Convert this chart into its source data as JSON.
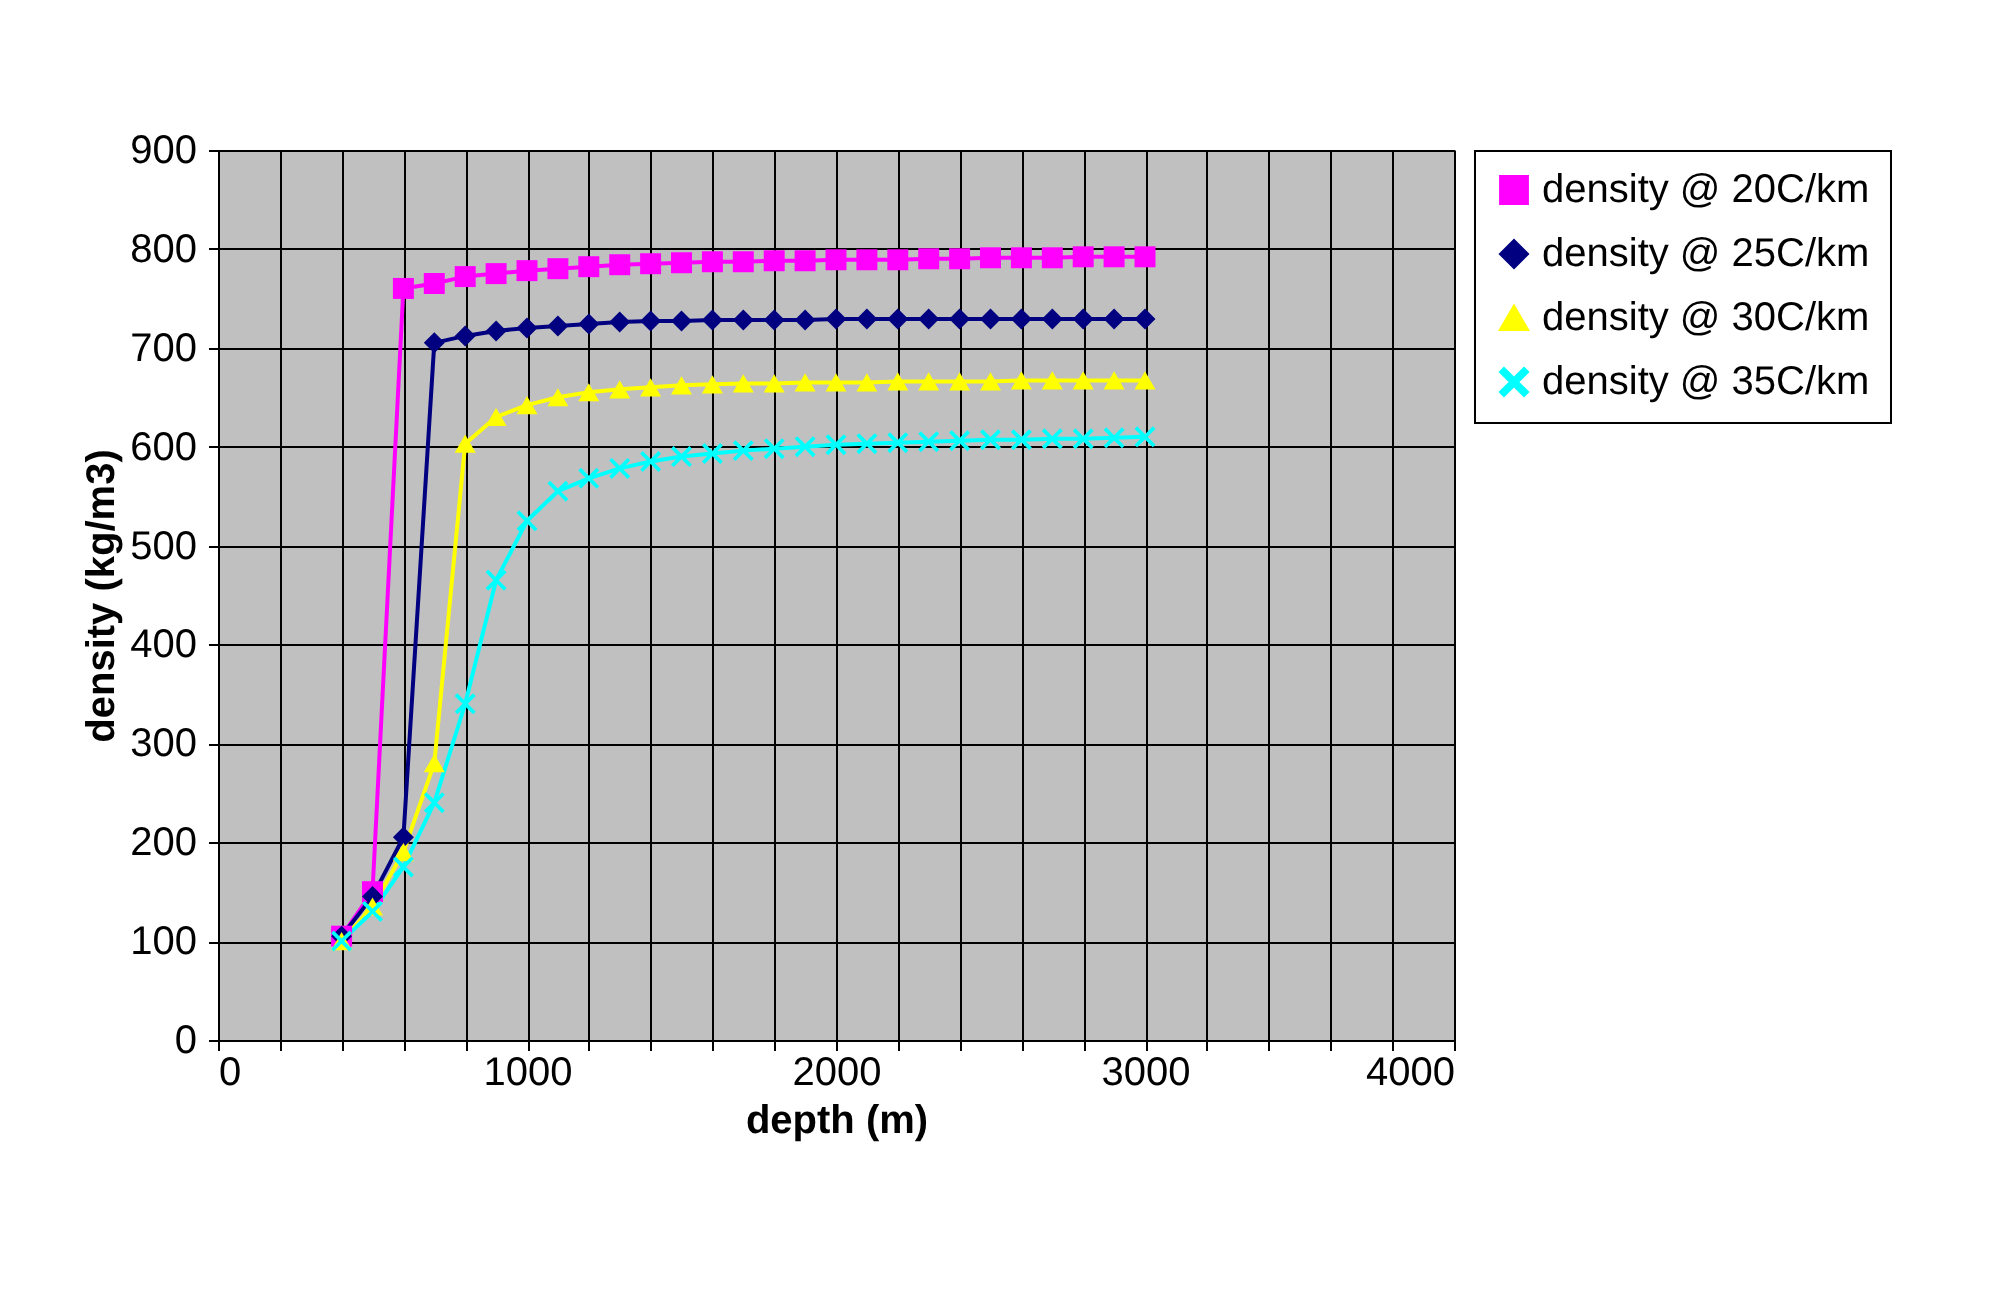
{
  "chart_data": {
    "type": "line",
    "xlabel": "depth (m)",
    "ylabel": "density (kg/m3)",
    "x": [
      400,
      500,
      600,
      700,
      800,
      900,
      1000,
      1100,
      1200,
      1300,
      1400,
      1500,
      1600,
      1700,
      1800,
      1900,
      2000,
      2100,
      2200,
      2300,
      2400,
      2500,
      2600,
      2700,
      2800,
      2900,
      3000
    ],
    "series": [
      {
        "name": "density @ 20C/km",
        "color": "#ff00ff",
        "marker": "square",
        "values": [
          105,
          150,
          760,
          765,
          772,
          775,
          778,
          780,
          782,
          784,
          785,
          786,
          787,
          787,
          788,
          788,
          789,
          789,
          789,
          790,
          790,
          791,
          791,
          791,
          792,
          792,
          792
        ]
      },
      {
        "name": "density @ 25C/km",
        "color": "#000080",
        "marker": "diamond",
        "values": [
          105,
          145,
          205,
          705,
          712,
          717,
          720,
          722,
          724,
          726,
          727,
          727,
          728,
          728,
          728,
          728,
          729,
          729,
          729,
          729,
          729,
          729,
          729,
          729,
          729,
          729,
          729
        ]
      },
      {
        "name": "density @ 30C/km",
        "color": "#ffff00",
        "marker": "triangle",
        "values": [
          100,
          135,
          190,
          280,
          603,
          630,
          642,
          650,
          655,
          658,
          660,
          662,
          663,
          664,
          664,
          665,
          665,
          665,
          666,
          666,
          666,
          666,
          667,
          667,
          667,
          667,
          667
        ]
      },
      {
        "name": "density @ 35C/km",
        "color": "#00ffff",
        "marker": "cross",
        "values": [
          100,
          130,
          175,
          240,
          340,
          465,
          525,
          555,
          568,
          578,
          585,
          590,
          593,
          596,
          598,
          600,
          602,
          603,
          604,
          605,
          606,
          607,
          607,
          608,
          608,
          609,
          610
        ]
      }
    ],
    "xlim": [
      0,
      4000
    ],
    "xticks": [
      0,
      {
        "value": 200,
        "label": null
      },
      {
        "value": 400,
        "label": null
      },
      {
        "value": 600,
        "label": null
      },
      {
        "value": 800,
        "label": null
      },
      1000,
      {
        "value": 1200,
        "label": null
      },
      {
        "value": 1400,
        "label": null
      },
      {
        "value": 1600,
        "label": null
      },
      {
        "value": 1800,
        "label": null
      },
      2000,
      {
        "value": 2200,
        "label": null
      },
      {
        "value": 2400,
        "label": null
      },
      {
        "value": 2600,
        "label": null
      },
      {
        "value": 2800,
        "label": null
      },
      3000,
      {
        "value": 3200,
        "label": null
      },
      {
        "value": 3400,
        "label": null
      },
      {
        "value": 3600,
        "label": null
      },
      {
        "value": 3800,
        "label": null
      },
      4000
    ],
    "ylim": [
      0,
      900
    ],
    "yticks": [
      0,
      100,
      200,
      300,
      400,
      500,
      600,
      700,
      800,
      900
    ],
    "grid": true,
    "legend": "right",
    "line_style": "solid"
  }
}
